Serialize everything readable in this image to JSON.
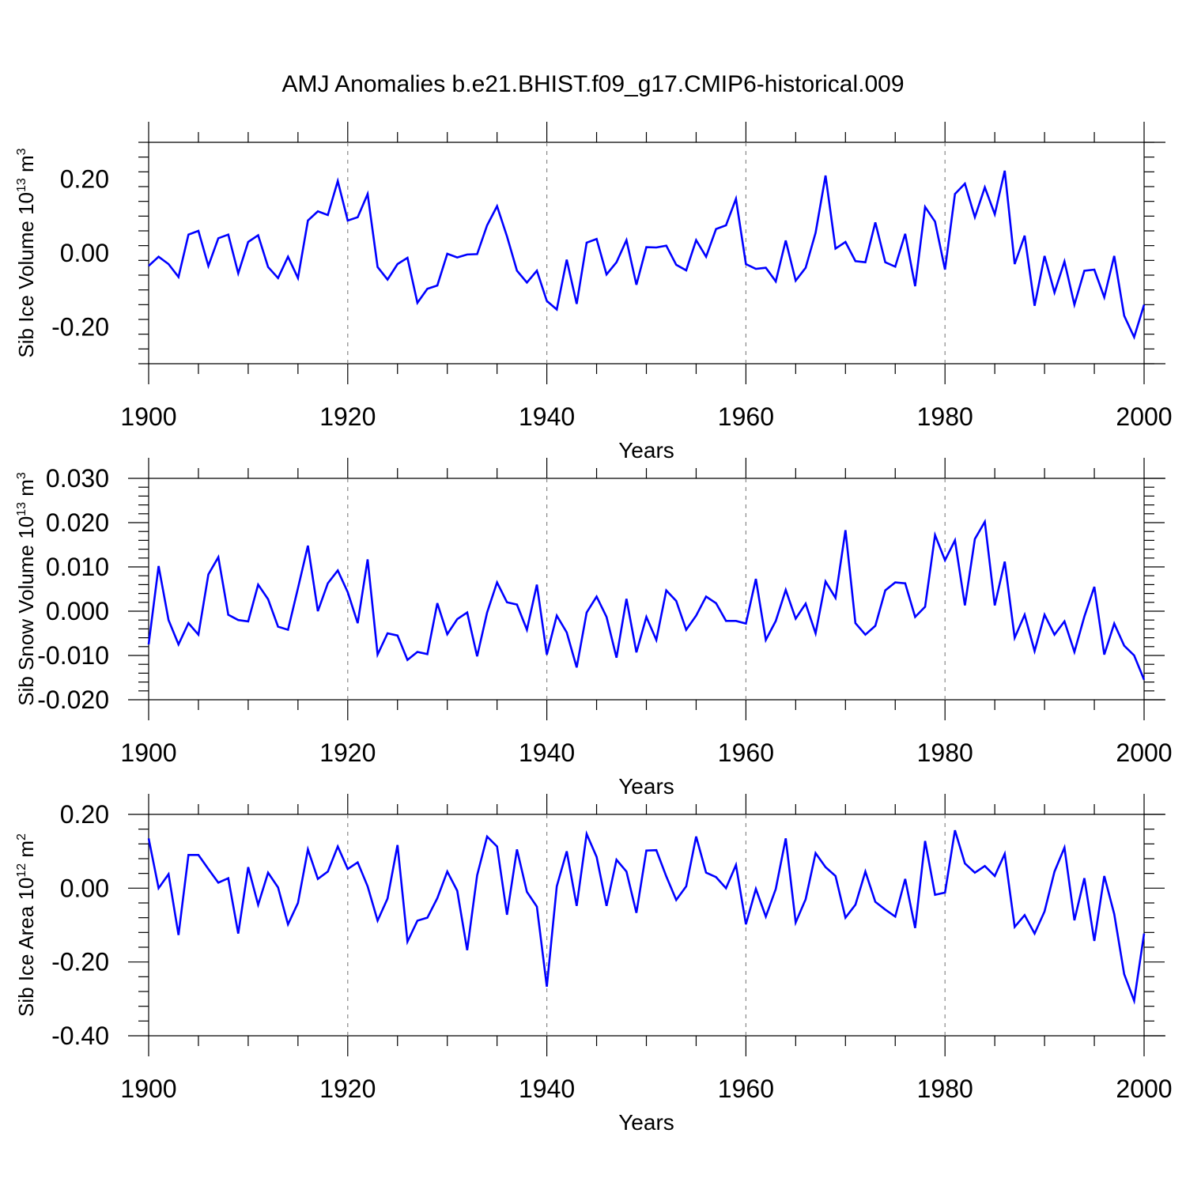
{
  "figure": {
    "title": "AMJ Anomalies b.e21.BHIST.f09_g17.CMIP6-historical.009"
  },
  "colors": {
    "line": "#0000ff"
  },
  "chart_data": [
    {
      "type": "line",
      "title": "",
      "xlabel": "Years",
      "ylabel": {
        "prefix": "Sib Ice Volume 10",
        "exp": "13",
        "unit": " m",
        "unit_exp": "3"
      },
      "xlim": [
        1900,
        2000
      ],
      "ylim": [
        -0.3,
        0.3
      ],
      "xticks": [
        1900,
        1920,
        1940,
        1960,
        1980,
        2000
      ],
      "xtick_labels": [
        "1900",
        "1920",
        "1940",
        "1960",
        "1980",
        "2000"
      ],
      "yticks": [
        0.2,
        0.0,
        -0.2
      ],
      "ytick_labels": [
        "0.20",
        "0.00",
        "-0.20"
      ],
      "grid_x": [
        1920,
        1940,
        1960,
        1980
      ],
      "x_start": 1900,
      "values": [
        -0.035,
        -0.01,
        -0.03,
        -0.065,
        0.05,
        0.06,
        -0.035,
        0.04,
        0.05,
        -0.055,
        0.03,
        0.048,
        -0.038,
        -0.068,
        -0.01,
        -0.068,
        0.088,
        0.113,
        0.103,
        0.195,
        0.088,
        0.097,
        0.16,
        -0.038,
        -0.072,
        -0.03,
        -0.013,
        -0.135,
        -0.097,
        -0.088,
        -0.002,
        -0.012,
        -0.004,
        -0.003,
        0.075,
        0.127,
        0.045,
        -0.048,
        -0.08,
        -0.048,
        -0.13,
        -0.153,
        -0.018,
        -0.138,
        0.028,
        0.038,
        -0.058,
        -0.025,
        0.035,
        -0.086,
        0.016,
        0.015,
        0.02,
        -0.032,
        -0.047,
        0.035,
        -0.01,
        0.065,
        0.075,
        0.147,
        -0.03,
        -0.043,
        -0.04,
        -0.077,
        0.034,
        -0.075,
        -0.04,
        0.055,
        0.21,
        0.012,
        0.03,
        -0.022,
        -0.025,
        0.083,
        -0.025,
        -0.037,
        0.052,
        -0.09,
        0.125,
        0.085,
        -0.045,
        0.16,
        0.188,
        0.097,
        0.178,
        0.105,
        0.223,
        -0.03,
        0.047,
        -0.143,
        -0.008,
        -0.107,
        -0.023,
        -0.14,
        -0.048,
        -0.045,
        -0.12,
        -0.008,
        -0.17,
        -0.228,
        -0.14
      ]
    },
    {
      "type": "line",
      "title": "",
      "xlabel": "Years",
      "ylabel": {
        "prefix": "Sib Snow Volume 10",
        "exp": "13",
        "unit": " m",
        "unit_exp": "3"
      },
      "xlim": [
        1900,
        2000
      ],
      "ylim": [
        -0.02,
        0.03
      ],
      "xticks": [
        1900,
        1920,
        1940,
        1960,
        1980,
        2000
      ],
      "xtick_labels": [
        "1900",
        "1920",
        "1940",
        "1960",
        "1980",
        "2000"
      ],
      "yticks": [
        0.03,
        0.02,
        0.01,
        0.0,
        -0.01,
        -0.02
      ],
      "ytick_labels": [
        "0.030",
        "0.020",
        "0.010",
        "0.000",
        "-0.010",
        "-0.020"
      ],
      "grid_x": [
        1920,
        1940,
        1960,
        1980
      ],
      "x_start": 1900,
      "values": [
        -0.0075,
        0.0102,
        -0.002,
        -0.0075,
        -0.0027,
        -0.0053,
        0.0083,
        0.0122,
        -0.0008,
        -0.002,
        -0.0023,
        0.006,
        0.0027,
        -0.0035,
        -0.0042,
        0.0052,
        0.0148,
        0.0,
        0.0063,
        0.0092,
        0.0043,
        -0.0027,
        0.0117,
        -0.0098,
        -0.005,
        -0.0055,
        -0.011,
        -0.0092,
        -0.0097,
        0.0018,
        -0.0052,
        -0.0018,
        -0.0003,
        -0.0102,
        -0.0003,
        0.0065,
        0.002,
        0.0015,
        -0.0042,
        0.006,
        -0.0098,
        -0.001,
        -0.0048,
        -0.0127,
        -0.0003,
        0.0033,
        -0.0013,
        -0.0105,
        0.0028,
        -0.0093,
        -0.0013,
        -0.0065,
        0.0047,
        0.0023,
        -0.0042,
        -0.001,
        0.0033,
        0.0018,
        -0.0022,
        -0.0022,
        -0.0028,
        0.0073,
        -0.0065,
        -0.0022,
        0.0048,
        -0.0017,
        0.0017,
        -0.005,
        0.0067,
        0.003,
        0.0183,
        -0.0027,
        -0.0053,
        -0.0033,
        0.0047,
        0.0065,
        0.0063,
        -0.0013,
        0.001,
        0.0172,
        0.0115,
        0.016,
        0.0013,
        0.0163,
        0.0202,
        0.0013,
        0.0112,
        -0.006,
        -0.0008,
        -0.009,
        -0.0008,
        -0.0053,
        -0.0023,
        -0.0092,
        -0.0012,
        0.0055,
        -0.0098,
        -0.0028,
        -0.0078,
        -0.01,
        -0.0155
      ]
    },
    {
      "type": "line",
      "title": "",
      "xlabel": "Years",
      "ylabel": {
        "prefix": "Sib Ice Area 10",
        "exp": "12",
        "unit": " m",
        "unit_exp": "2"
      },
      "xlim": [
        1900,
        2000
      ],
      "ylim": [
        -0.4,
        0.2
      ],
      "xticks": [
        1900,
        1920,
        1940,
        1960,
        1980,
        2000
      ],
      "xtick_labels": [
        "1900",
        "1920",
        "1940",
        "1960",
        "1980",
        "2000"
      ],
      "yticks": [
        0.2,
        0.0,
        -0.2,
        -0.4
      ],
      "ytick_labels": [
        "0.20",
        "0.00",
        "-0.20",
        "-0.40"
      ],
      "grid_x": [
        1920,
        1940,
        1960,
        1980
      ],
      "x_start": 1900,
      "values": [
        0.135,
        0.0,
        0.038,
        -0.127,
        0.09,
        0.09,
        0.052,
        0.015,
        0.027,
        -0.123,
        0.057,
        -0.045,
        0.042,
        0.002,
        -0.098,
        -0.04,
        0.105,
        0.025,
        0.045,
        0.113,
        0.052,
        0.07,
        0.005,
        -0.088,
        -0.028,
        0.117,
        -0.145,
        -0.088,
        -0.08,
        -0.027,
        0.045,
        -0.007,
        -0.168,
        0.035,
        0.14,
        0.113,
        -0.072,
        0.105,
        -0.01,
        -0.05,
        -0.267,
        0.005,
        0.1,
        -0.048,
        0.147,
        0.085,
        -0.048,
        0.077,
        0.045,
        -0.067,
        0.102,
        0.103,
        0.032,
        -0.032,
        0.005,
        0.14,
        0.042,
        0.03,
        0.0,
        0.063,
        -0.098,
        -0.002,
        -0.077,
        -0.002,
        0.135,
        -0.093,
        -0.03,
        0.095,
        0.057,
        0.033,
        -0.08,
        -0.045,
        0.045,
        -0.037,
        -0.058,
        -0.077,
        0.025,
        -0.108,
        0.128,
        -0.018,
        -0.012,
        0.157,
        0.067,
        0.042,
        0.06,
        0.033,
        0.093,
        -0.105,
        -0.073,
        -0.123,
        -0.063,
        0.045,
        0.11,
        -0.087,
        0.027,
        -0.143,
        0.033,
        -0.07,
        -0.233,
        -0.305,
        -0.123
      ]
    }
  ]
}
